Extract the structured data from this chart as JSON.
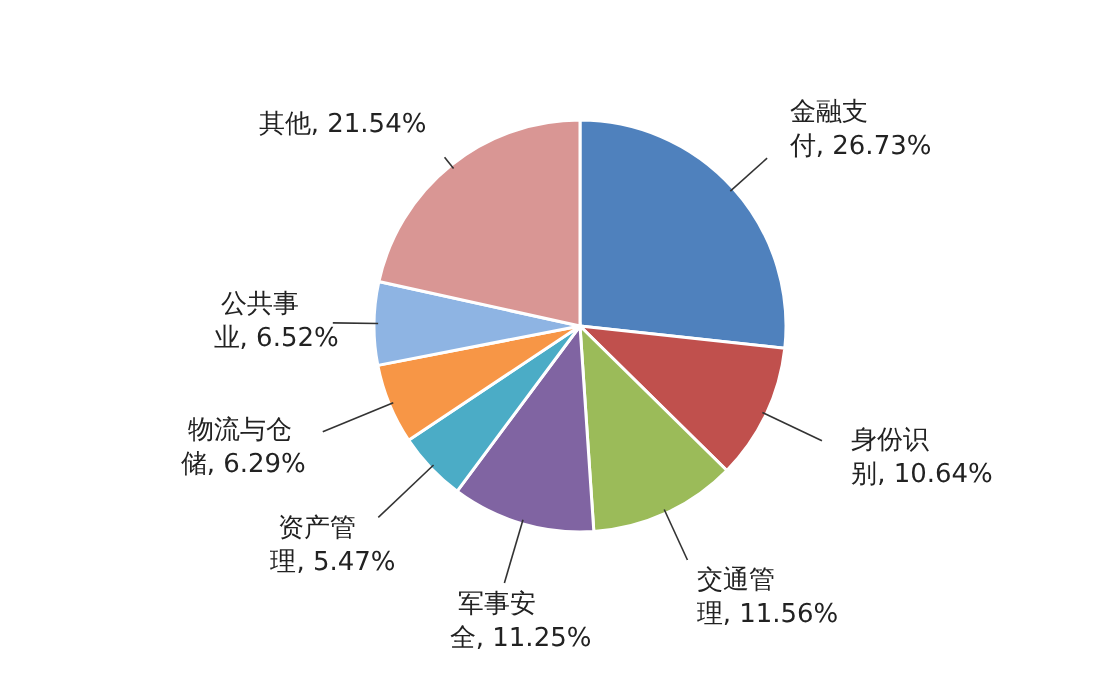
{
  "chart_data": {
    "type": "pie",
    "data_labels": true,
    "categories": [
      "金融支付",
      "身份识别",
      "交通管理",
      "军事安全",
      "资产管理",
      "物流与仓储",
      "公共事业",
      "其他"
    ],
    "values": [
      26.73,
      10.64,
      11.56,
      11.25,
      5.47,
      6.29,
      6.52,
      21.54
    ],
    "value_labels": [
      ", 26.73%",
      ", 10.64%",
      ", 11.56%",
      ", 11.25%",
      ", 5.47%",
      ", 6.29%",
      ", 6.52%",
      ", 21.54%"
    ],
    "colors": [
      "#4f81bd",
      "#c0504d",
      "#9bbb59",
      "#8064a2",
      "#4bacc6",
      "#f79646",
      "#8eb4e3",
      "#d99694"
    ]
  }
}
